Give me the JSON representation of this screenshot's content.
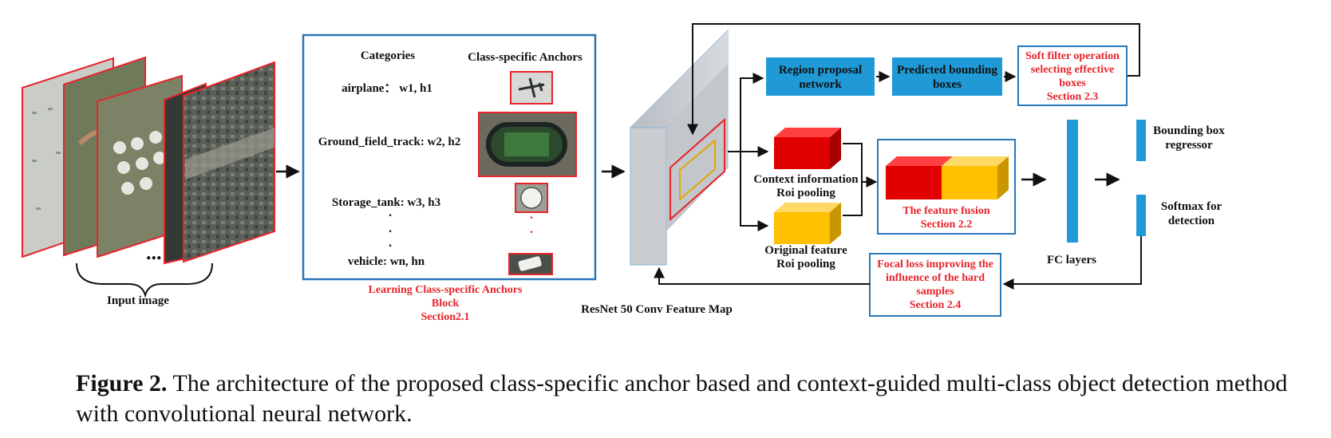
{
  "input": {
    "label": "Input image",
    "dots": "..."
  },
  "anchors_block": {
    "col_categories": "Categories",
    "col_anchors": "Class-specific Anchors",
    "rows": [
      {
        "text": "airplane： w1, h1",
        "icon": "airplane-thumbnail"
      },
      {
        "text": "Ground_field_track:  w2, h2",
        "icon": "track-field-thumbnail"
      },
      {
        "text": "Storage_tank:  w3, h3",
        "icon": "storage-tank-thumbnail"
      },
      {
        "text": "vehicle:  wn, hn",
        "icon": "vehicle-thumbnail"
      }
    ],
    "title_lines": [
      "Learning Class-specific Anchors",
      "Block",
      "Section2.1"
    ]
  },
  "feature_map": {
    "label": "ResNet 50 Conv Feature Map"
  },
  "rpn": {
    "lines": [
      "Region proposal",
      "network"
    ]
  },
  "pred_boxes": {
    "lines": [
      "Predicted bounding",
      "boxes"
    ]
  },
  "soft_filter": {
    "lines": [
      "Soft filter operation",
      "selecting effective",
      "boxes",
      "Section 2.3"
    ]
  },
  "context_pool": {
    "lines": [
      "Context information",
      "Roi pooling"
    ]
  },
  "original_pool": {
    "lines": [
      "Original feature",
      "Roi pooling"
    ]
  },
  "fusion": {
    "lines": [
      "The feature fusion",
      "Section 2.2"
    ]
  },
  "focal": {
    "lines": [
      "Focal loss improving the",
      "influence of the  hard",
      "samples",
      "Section 2.4"
    ]
  },
  "fc": {
    "label": "FC layers"
  },
  "bbox_reg": {
    "lines": [
      "Bounding box",
      "regressor"
    ]
  },
  "softmax": {
    "lines": [
      "Softmax for",
      "detection"
    ]
  },
  "caption": {
    "prefix": "Figure 2.",
    "text": " The architecture of the proposed class-specific anchor based and context-guided multi-class object detection method with convolutional neural network."
  },
  "colors": {
    "blue_box": "#1f9ad6",
    "frame_blue": "#2a77b6",
    "accent_red": "#e8232a",
    "cube_red": "#e00000",
    "cube_yellow": "#ffc000"
  }
}
